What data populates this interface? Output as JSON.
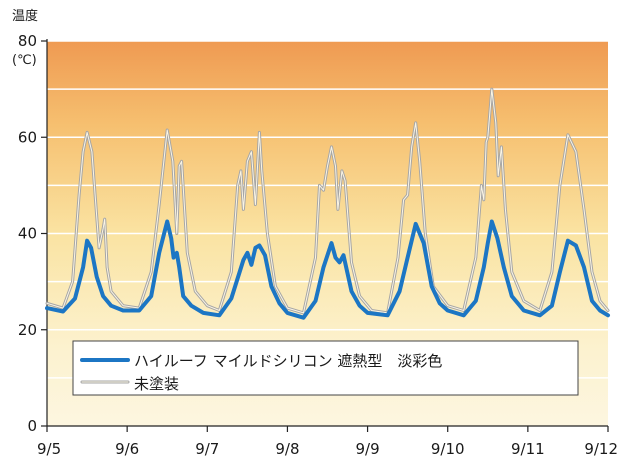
{
  "chart_data": {
    "type": "line",
    "ylabel": "温度",
    "yunit": "(℃)",
    "ylim": [
      0,
      80
    ],
    "yticks": [
      "0",
      "20",
      "40",
      "60",
      "80"
    ],
    "x_categories": [
      "9/5",
      "9/6",
      "9/7",
      "9/8",
      "9/9",
      "9/10",
      "9/11",
      "9/12"
    ],
    "grid": "horizontal white lines every 10 on a warm gradient background",
    "legend_position": "lower-center",
    "series": [
      {
        "name": "ハイルーフ マイルドシリコン 遮熱型　淡彩色",
        "color": "#1c76c4",
        "style": "solid-thick",
        "points": [
          [
            0.0,
            24.5
          ],
          [
            0.2,
            23.8
          ],
          [
            0.35,
            26.5
          ],
          [
            0.45,
            33
          ],
          [
            0.5,
            38.5
          ],
          [
            0.55,
            37
          ],
          [
            0.62,
            31
          ],
          [
            0.7,
            27
          ],
          [
            0.8,
            25
          ],
          [
            0.95,
            24
          ],
          [
            1.15,
            24
          ],
          [
            1.3,
            27
          ],
          [
            1.4,
            36
          ],
          [
            1.5,
            42.5
          ],
          [
            1.55,
            39
          ],
          [
            1.58,
            35
          ],
          [
            1.62,
            36
          ],
          [
            1.65,
            33
          ],
          [
            1.7,
            27
          ],
          [
            1.8,
            25
          ],
          [
            1.95,
            23.5
          ],
          [
            2.15,
            23
          ],
          [
            2.3,
            26.5
          ],
          [
            2.45,
            34.5
          ],
          [
            2.5,
            36
          ],
          [
            2.55,
            33.5
          ],
          [
            2.6,
            37
          ],
          [
            2.65,
            37.5
          ],
          [
            2.72,
            35.5
          ],
          [
            2.8,
            29
          ],
          [
            2.9,
            25.5
          ],
          [
            3.0,
            23.5
          ],
          [
            3.2,
            22.5
          ],
          [
            3.35,
            26
          ],
          [
            3.45,
            33
          ],
          [
            3.55,
            38
          ],
          [
            3.6,
            35
          ],
          [
            3.65,
            34
          ],
          [
            3.7,
            35.5
          ],
          [
            3.8,
            28
          ],
          [
            3.9,
            25
          ],
          [
            4.0,
            23.5
          ],
          [
            4.25,
            23
          ],
          [
            4.4,
            28
          ],
          [
            4.5,
            35
          ],
          [
            4.6,
            42
          ],
          [
            4.7,
            38
          ],
          [
            4.8,
            29
          ],
          [
            4.9,
            25.5
          ],
          [
            5.0,
            24
          ],
          [
            5.2,
            23
          ],
          [
            5.35,
            26
          ],
          [
            5.45,
            33
          ],
          [
            5.5,
            38
          ],
          [
            5.55,
            42.5
          ],
          [
            5.62,
            39
          ],
          [
            5.7,
            33
          ],
          [
            5.8,
            27
          ],
          [
            5.95,
            24
          ],
          [
            6.15,
            23
          ],
          [
            6.3,
            25
          ],
          [
            6.4,
            32
          ],
          [
            6.5,
            38.5
          ],
          [
            6.6,
            37.5
          ],
          [
            6.7,
            33
          ],
          [
            6.8,
            26
          ],
          [
            6.9,
            24
          ],
          [
            7.0,
            23
          ]
        ]
      },
      {
        "name": "未塗装",
        "color": "#a6a6a6",
        "style": "solid-thin-double",
        "points": [
          [
            0.0,
            25.5
          ],
          [
            0.2,
            24.5
          ],
          [
            0.32,
            30
          ],
          [
            0.4,
            48
          ],
          [
            0.45,
            57
          ],
          [
            0.5,
            61
          ],
          [
            0.56,
            57
          ],
          [
            0.6,
            48
          ],
          [
            0.65,
            37
          ],
          [
            0.7,
            41
          ],
          [
            0.72,
            43
          ],
          [
            0.75,
            33
          ],
          [
            0.8,
            28
          ],
          [
            0.95,
            25
          ],
          [
            1.15,
            24.5
          ],
          [
            1.3,
            32
          ],
          [
            1.4,
            46
          ],
          [
            1.5,
            61.5
          ],
          [
            1.57,
            55
          ],
          [
            1.62,
            40
          ],
          [
            1.65,
            54
          ],
          [
            1.68,
            55
          ],
          [
            1.75,
            36
          ],
          [
            1.85,
            28
          ],
          [
            2.0,
            25
          ],
          [
            2.15,
            24
          ],
          [
            2.3,
            32
          ],
          [
            2.38,
            50
          ],
          [
            2.42,
            53
          ],
          [
            2.45,
            45
          ],
          [
            2.5,
            55
          ],
          [
            2.55,
            57
          ],
          [
            2.6,
            46
          ],
          [
            2.65,
            61
          ],
          [
            2.68,
            53
          ],
          [
            2.75,
            40
          ],
          [
            2.85,
            29
          ],
          [
            3.0,
            24.5
          ],
          [
            3.2,
            23.5
          ],
          [
            3.35,
            35
          ],
          [
            3.4,
            50
          ],
          [
            3.45,
            49
          ],
          [
            3.5,
            54
          ],
          [
            3.55,
            58
          ],
          [
            3.6,
            54
          ],
          [
            3.63,
            45
          ],
          [
            3.68,
            53
          ],
          [
            3.72,
            51
          ],
          [
            3.8,
            34
          ],
          [
            3.9,
            27
          ],
          [
            4.05,
            24
          ],
          [
            4.25,
            23.5
          ],
          [
            4.38,
            35
          ],
          [
            4.45,
            47
          ],
          [
            4.5,
            48
          ],
          [
            4.55,
            58
          ],
          [
            4.6,
            63
          ],
          [
            4.65,
            55
          ],
          [
            4.72,
            40
          ],
          [
            4.82,
            29
          ],
          [
            5.0,
            25
          ],
          [
            5.2,
            24
          ],
          [
            5.35,
            35
          ],
          [
            5.42,
            50
          ],
          [
            5.45,
            47
          ],
          [
            5.48,
            59
          ],
          [
            5.5,
            60
          ],
          [
            5.55,
            70
          ],
          [
            5.6,
            63
          ],
          [
            5.63,
            52
          ],
          [
            5.67,
            58
          ],
          [
            5.72,
            45
          ],
          [
            5.8,
            32
          ],
          [
            5.95,
            26
          ],
          [
            6.15,
            24
          ],
          [
            6.3,
            32
          ],
          [
            6.4,
            50
          ],
          [
            6.5,
            60.5
          ],
          [
            6.6,
            57
          ],
          [
            6.7,
            45
          ],
          [
            6.8,
            32
          ],
          [
            6.9,
            26
          ],
          [
            7.0,
            24
          ]
        ]
      }
    ]
  }
}
